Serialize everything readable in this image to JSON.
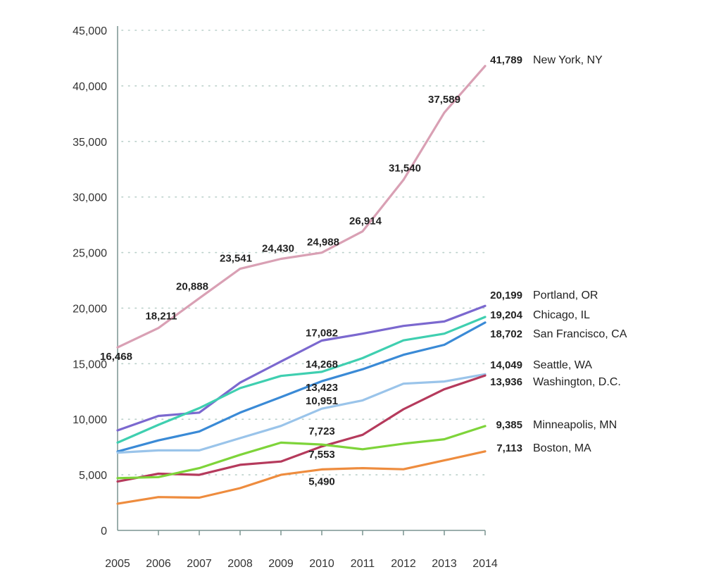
{
  "chart_data": {
    "type": "line",
    "title": "",
    "xlabel": "",
    "ylabel": "",
    "x": [
      "2005",
      "2006",
      "2007",
      "2008",
      "2009",
      "2010",
      "2011",
      "2012",
      "2013",
      "2014"
    ],
    "ylim": [
      0,
      45000
    ],
    "yticks": [
      0,
      5000,
      10000,
      15000,
      20000,
      25000,
      30000,
      35000,
      40000,
      45000
    ],
    "ytick_labels": [
      "0",
      "5,000",
      "10,000",
      "15,000",
      "20,000",
      "25,000",
      "30,000",
      "35,000",
      "40,000",
      "45,000"
    ],
    "grid": "horizontal dotted",
    "legend": "inline labels at right end of each line",
    "series": [
      {
        "name": "New York, NY",
        "color": "#d9a0b4",
        "values": [
          16468,
          18211,
          20888,
          23541,
          24430,
          24988,
          26914,
          31540,
          37589,
          41789
        ],
        "labels": [
          "16,468",
          "18,211",
          "20,888",
          "23,541",
          "24,430",
          "24,988",
          "26,914",
          "31,540",
          "37,589",
          "41,789"
        ],
        "labeled_points": [
          0,
          1,
          2,
          3,
          4,
          5,
          6,
          7,
          8,
          9
        ]
      },
      {
        "name": "Portland, OR",
        "color": "#7b68cf",
        "values": [
          9000,
          10300,
          10600,
          13300,
          15200,
          17082,
          17700,
          18400,
          18800,
          20199
        ],
        "labels": {
          "5": "17,082",
          "9": "20,199"
        }
      },
      {
        "name": "Chicago, IL",
        "color": "#3fcfb0",
        "values": [
          7900,
          9500,
          11000,
          12800,
          13900,
          14268,
          15500,
          17100,
          17700,
          19204
        ],
        "labels": {
          "5": "14,268",
          "9": "19,204"
        }
      },
      {
        "name": "San Francisco, CA",
        "color": "#3a8ad6",
        "values": [
          7100,
          8100,
          8900,
          10600,
          12000,
          13423,
          14500,
          15800,
          16700,
          18702
        ],
        "labels": {
          "5": "13,423",
          "9": "18,702"
        }
      },
      {
        "name": "Seattle, WA",
        "color": "#9ac4ea",
        "values": [
          7000,
          7200,
          7200,
          8300,
          9400,
          10951,
          11700,
          13200,
          13400,
          14049
        ],
        "labels": {
          "5": "10,951",
          "9": "14,049"
        }
      },
      {
        "name": "Washington, D.C.",
        "color": "#b53a5c",
        "values": [
          4400,
          5100,
          5000,
          5900,
          6200,
          7553,
          8600,
          10900,
          12700,
          13936
        ],
        "labels": {
          "5": "7,553",
          "9": "13,936"
        }
      },
      {
        "name": "Minneapolis, MN",
        "color": "#7ed43a",
        "values": [
          4700,
          4800,
          5600,
          6800,
          7900,
          7723,
          7300,
          7800,
          8200,
          9385
        ],
        "labels": {
          "5": "7,723",
          "9": "9,385"
        }
      },
      {
        "name": "Boston, MA",
        "color": "#ee8c3e",
        "values": [
          2400,
          3000,
          2950,
          3800,
          5000,
          5490,
          5600,
          5500,
          6300,
          7113
        ],
        "labels": {
          "5": "5,490",
          "9": "7,113"
        }
      }
    ]
  }
}
